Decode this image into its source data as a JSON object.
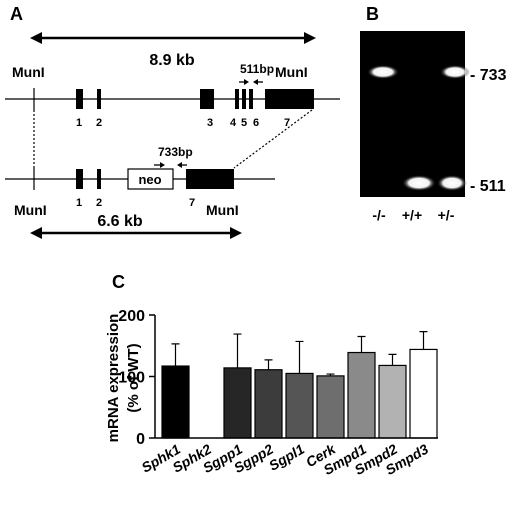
{
  "panel_a": {
    "label": "A",
    "top_length": "8.9 kb",
    "bottom_length": "6.6 kb",
    "enzyme_left_top": "MunI",
    "enzyme_right_top": "MunI",
    "enzyme_left_bottom": "MunI",
    "enzyme_right_bottom": "MunI",
    "primer_top": "511bp",
    "primer_bottom": "733bp",
    "neo_label": "neo",
    "exons_top": [
      "1",
      "2",
      "3",
      "4",
      "5",
      "6",
      "7"
    ],
    "exons_bottom": [
      "1",
      "2",
      "7"
    ]
  },
  "panel_b": {
    "label": "B",
    "band_733": "- 733",
    "band_511": "- 511",
    "lanes": [
      "-/-",
      "+/+",
      "+/-"
    ]
  },
  "panel_c": {
    "label": "C"
  },
  "chart_data": {
    "type": "bar",
    "categories": [
      "Sphk1",
      "Sphk2",
      "Sgpp1",
      "Sgpp2",
      "Sgpl1",
      "Cerk",
      "Smpd1",
      "Smpd2",
      "Smpd3"
    ],
    "values": [
      117,
      0,
      114,
      111,
      105,
      101,
      139,
      118,
      144
    ],
    "errors": [
      36,
      0,
      55,
      16,
      52,
      3,
      26,
      18,
      29
    ],
    "colors": [
      "#000000",
      "#ffffff",
      "#262626",
      "#3c3c3c",
      "#555555",
      "#6e6e6e",
      "#8a8a8a",
      "#b2b2b2",
      "#ffffff"
    ],
    "ylabel_line1": "mRNA  expression",
    "ylabel_line2": "(% of WT)",
    "yticks": [
      "0",
      "100",
      "200"
    ],
    "ylim": [
      0,
      200
    ]
  }
}
